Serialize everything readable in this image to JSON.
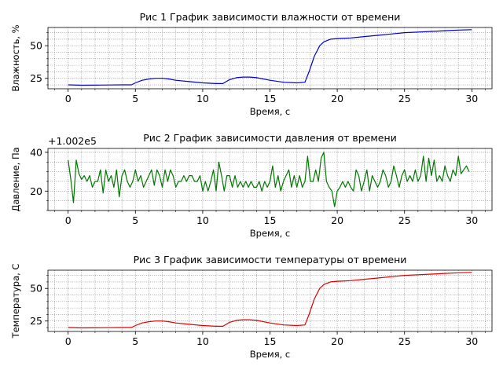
{
  "chart_data": [
    {
      "type": "line",
      "title": "Рис 1 График зависимости влажности от времени",
      "xlabel": "Время, с",
      "ylabel": "Влажность, %",
      "xlim": [
        -1.5,
        31.5
      ],
      "ylim": [
        17,
        64
      ],
      "xticks": [
        0,
        5,
        10,
        15,
        20,
        25,
        30
      ],
      "yticks": [
        25,
        50
      ],
      "grid": true,
      "color": "#0000cc",
      "series": [
        {
          "x": [
            0,
            1,
            2,
            3,
            4,
            4.7,
            5,
            5.5,
            6,
            6.5,
            7,
            7.5,
            8,
            9,
            10,
            11,
            11.5,
            12,
            12.5,
            13,
            13.5,
            14,
            15,
            16,
            17,
            17.6,
            17.9,
            18.3,
            18.7,
            19,
            19.5,
            20,
            21,
            22,
            23,
            24,
            25,
            26,
            27,
            28,
            29,
            30
          ],
          "y": [
            20,
            19.7,
            19.8,
            19.9,
            20,
            20,
            21.5,
            23.5,
            24.5,
            25,
            25,
            24.5,
            23.5,
            22.5,
            21.5,
            21,
            21,
            24,
            25.5,
            26,
            26,
            25.5,
            23.5,
            22,
            21.5,
            22,
            30,
            42,
            50,
            53,
            55,
            55.5,
            56,
            57,
            58,
            59,
            60,
            60.5,
            61,
            61.5,
            62,
            62.3
          ]
        }
      ]
    },
    {
      "type": "line",
      "title": "Рис 2 График зависимости давления от времени",
      "xlabel": "Время, с",
      "ylabel": "Давление, Па",
      "offset_label": "+1.002e5",
      "xlim": [
        -1.5,
        31.5
      ],
      "ylim": [
        10,
        42
      ],
      "xticks": [
        0,
        5,
        10,
        15,
        20,
        25,
        30
      ],
      "yticks": [
        20,
        40
      ],
      "grid": true,
      "color": "#007700",
      "series": [
        {
          "x": [
            0,
            0.2,
            0.4,
            0.6,
            0.8,
            1,
            1.2,
            1.4,
            1.6,
            1.8,
            2,
            2.2,
            2.4,
            2.6,
            2.8,
            3,
            3.2,
            3.4,
            3.6,
            3.8,
            4,
            4.2,
            4.4,
            4.6,
            4.8,
            5,
            5.2,
            5.4,
            5.6,
            5.8,
            6,
            6.2,
            6.4,
            6.6,
            6.8,
            7,
            7.2,
            7.4,
            7.6,
            7.8,
            8,
            8.2,
            8.4,
            8.6,
            8.8,
            9,
            9.2,
            9.4,
            9.6,
            9.8,
            10,
            10.2,
            10.4,
            10.6,
            10.8,
            11,
            11.2,
            11.4,
            11.6,
            11.8,
            12,
            12.2,
            12.4,
            12.6,
            12.8,
            13,
            13.2,
            13.4,
            13.6,
            13.8,
            14,
            14.2,
            14.4,
            14.6,
            14.8,
            15,
            15.2,
            15.4,
            15.6,
            15.8,
            16,
            16.2,
            16.4,
            16.6,
            16.8,
            17,
            17.2,
            17.4,
            17.6,
            17.8,
            18,
            18.2,
            18.4,
            18.6,
            18.8,
            19,
            19.2,
            19.4,
            19.6,
            19.8,
            20,
            20.2,
            20.4,
            20.6,
            20.8,
            21,
            21.2,
            21.4,
            21.6,
            21.8,
            22,
            22.2,
            22.4,
            22.6,
            22.8,
            23,
            23.2,
            23.4,
            23.6,
            23.8,
            24,
            24.2,
            24.4,
            24.6,
            24.8,
            25,
            25.2,
            25.4,
            25.6,
            25.8,
            26,
            26.2,
            26.4,
            26.6,
            26.8,
            27,
            27.2,
            27.4,
            27.6,
            27.8,
            28,
            28.2,
            28.4,
            28.6,
            28.8,
            29,
            29.2,
            29.4,
            29.6,
            29.8
          ],
          "y": [
            36,
            26,
            14,
            36,
            29,
            26,
            28,
            25,
            28,
            22,
            25,
            25,
            31,
            19,
            31,
            25,
            28,
            22,
            31,
            17,
            28,
            31,
            25,
            22,
            25,
            31,
            25,
            28,
            22,
            25,
            28,
            31,
            23,
            31,
            28,
            22,
            31,
            25,
            31,
            28,
            22,
            25,
            25,
            28,
            25,
            28,
            28,
            25,
            25,
            28,
            20,
            25,
            20,
            25,
            31,
            20,
            35,
            28,
            20,
            28,
            28,
            22,
            28,
            22,
            25,
            22,
            25,
            22,
            25,
            22,
            22,
            25,
            20,
            25,
            22,
            25,
            33,
            22,
            28,
            20,
            25,
            28,
            31,
            22,
            28,
            22,
            28,
            22,
            25,
            38,
            25,
            25,
            31,
            25,
            37,
            40,
            25,
            22,
            20,
            12,
            20,
            22,
            25,
            22,
            25,
            22,
            20,
            31,
            28,
            20,
            25,
            31,
            20,
            28,
            25,
            22,
            25,
            31,
            28,
            22,
            25,
            33,
            28,
            22,
            28,
            31,
            25,
            28,
            25,
            31,
            25,
            28,
            38,
            25,
            37,
            28,
            36,
            25,
            28,
            25,
            33,
            28,
            25,
            31,
            28,
            38,
            29,
            31,
            33,
            30
          ]
        }
      ]
    },
    {
      "type": "line",
      "title": "Рис 3 График зависимости температуры от времени",
      "xlabel": "Время, с",
      "ylabel": "Температура, С",
      "xlim": [
        -1.5,
        31.5
      ],
      "ylim": [
        17,
        64
      ],
      "xticks": [
        0,
        5,
        10,
        15,
        20,
        25,
        30
      ],
      "yticks": [
        25,
        50
      ],
      "grid": true,
      "color": "#dd0000",
      "series": [
        {
          "x": [
            0,
            1,
            2,
            3,
            4,
            4.7,
            5,
            5.5,
            6,
            6.5,
            7,
            7.5,
            8,
            9,
            10,
            11,
            11.5,
            12,
            12.5,
            13,
            13.5,
            14,
            15,
            16,
            17,
            17.6,
            17.9,
            18.3,
            18.7,
            19,
            19.5,
            20,
            21,
            22,
            23,
            24,
            25,
            26,
            27,
            28,
            29,
            30
          ],
          "y": [
            20,
            19.7,
            19.8,
            19.9,
            20,
            20,
            21.5,
            23.5,
            24.5,
            25,
            25,
            24.5,
            23.5,
            22.5,
            21.5,
            21,
            21,
            24,
            25.5,
            26,
            26,
            25.5,
            23.5,
            22,
            21.5,
            22,
            30,
            42,
            50,
            53,
            55,
            55.5,
            56,
            57,
            58,
            59,
            60,
            60.5,
            61,
            61.5,
            62,
            62.3
          ]
        }
      ]
    }
  ]
}
